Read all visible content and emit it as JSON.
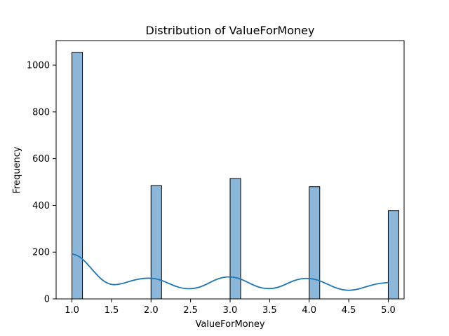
{
  "chart_data": {
    "type": "bar",
    "title": "Distribution of ValueForMoney",
    "xlabel": "ValueForMoney",
    "ylabel": "Frequency",
    "xlim": [
      0.8,
      5.2
    ],
    "ylim": [
      0,
      1105
    ],
    "xticks": [
      "1.0",
      "1.5",
      "2.0",
      "2.5",
      "3.0",
      "3.5",
      "4.0",
      "4.5",
      "5.0"
    ],
    "xtick_values": [
      1.0,
      1.5,
      2.0,
      2.5,
      3.0,
      3.5,
      4.0,
      4.5,
      5.0
    ],
    "yticks": [
      "0",
      "200",
      "400",
      "600",
      "800",
      "1000"
    ],
    "ytick_values": [
      0,
      200,
      400,
      600,
      800,
      1000
    ],
    "bin_width": 0.1333,
    "bars": [
      {
        "x": 1.0,
        "value": 1055
      },
      {
        "x": 2.0,
        "value": 485
      },
      {
        "x": 3.0,
        "value": 515
      },
      {
        "x": 4.0,
        "value": 480
      },
      {
        "x": 5.0,
        "value": 378
      }
    ],
    "kde": {
      "x": [
        1.0,
        1.1,
        1.2,
        1.3,
        1.4,
        1.5,
        1.6,
        1.7,
        1.8,
        1.9,
        2.0,
        2.1,
        2.2,
        2.3,
        2.4,
        2.5,
        2.6,
        2.7,
        2.8,
        2.9,
        3.0,
        3.1,
        3.2,
        3.3,
        3.4,
        3.5,
        3.6,
        3.7,
        3.8,
        3.9,
        4.0,
        4.1,
        4.2,
        4.3,
        4.4,
        4.5,
        4.6,
        4.7,
        4.8,
        4.9,
        5.0
      ],
      "y": [
        193,
        182,
        148,
        108,
        75,
        60,
        62,
        72,
        82,
        88,
        89,
        84,
        70,
        55,
        45,
        43,
        48,
        62,
        80,
        92,
        95,
        90,
        75,
        58,
        46,
        43,
        48,
        62,
        78,
        87,
        88,
        82,
        68,
        52,
        40,
        36,
        40,
        50,
        60,
        67,
        70
      ]
    },
    "bar_color": "#8bb8da",
    "bar_edge_color": "#000000",
    "kde_color": "#1f77b4",
    "grid": false,
    "legend": "none"
  }
}
